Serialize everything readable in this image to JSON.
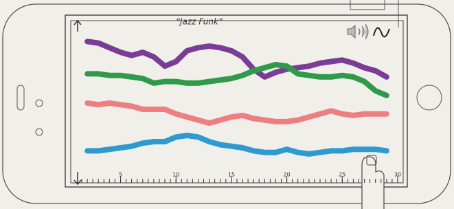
{
  "chart_data": {
    "type": "line",
    "title": "“Jazz Funk”",
    "x": [
      2,
      3,
      4,
      5,
      6,
      7,
      8,
      9,
      10,
      11,
      12,
      13,
      14,
      15,
      16,
      17,
      18,
      19,
      20,
      21,
      22,
      23,
      24,
      25,
      26,
      27,
      28,
      29
    ],
    "series": [
      {
        "color": "#7a3d96",
        "values": [
          90,
          89,
          86,
          83,
          81,
          83,
          80,
          74,
          77,
          84,
          86,
          87,
          86,
          84,
          80,
          72,
          67,
          70,
          72,
          73,
          74,
          76,
          77,
          78,
          76,
          73,
          71,
          67
        ]
      },
      {
        "color": "#2f9a4a",
        "values": [
          69,
          69,
          68,
          68,
          67,
          66,
          63,
          64,
          64,
          63,
          63,
          64,
          65,
          66,
          68,
          71,
          73,
          75,
          74,
          69,
          68,
          67,
          67,
          68,
          67,
          64,
          58,
          55
        ]
      },
      {
        "color": "#ee7f80",
        "values": [
          50,
          49,
          50,
          49,
          48,
          46,
          46,
          46,
          43,
          41,
          39,
          37,
          39,
          41,
          42,
          40,
          39,
          38,
          38,
          39,
          41,
          43,
          45,
          43,
          42,
          43,
          43,
          43
        ]
      },
      {
        "color": "#2e9ad0",
        "values": [
          19,
          19,
          20,
          21,
          22,
          24,
          25,
          25,
          28,
          29,
          28,
          25,
          23,
          22,
          21,
          19,
          18,
          18,
          20,
          18,
          17,
          18,
          19,
          19,
          20,
          20,
          20,
          19
        ]
      }
    ],
    "xlim": [
      0.5,
      30.5
    ],
    "xticks": [
      5,
      10,
      15,
      20,
      25,
      30
    ],
    "ylim": [
      0,
      100
    ]
  }
}
